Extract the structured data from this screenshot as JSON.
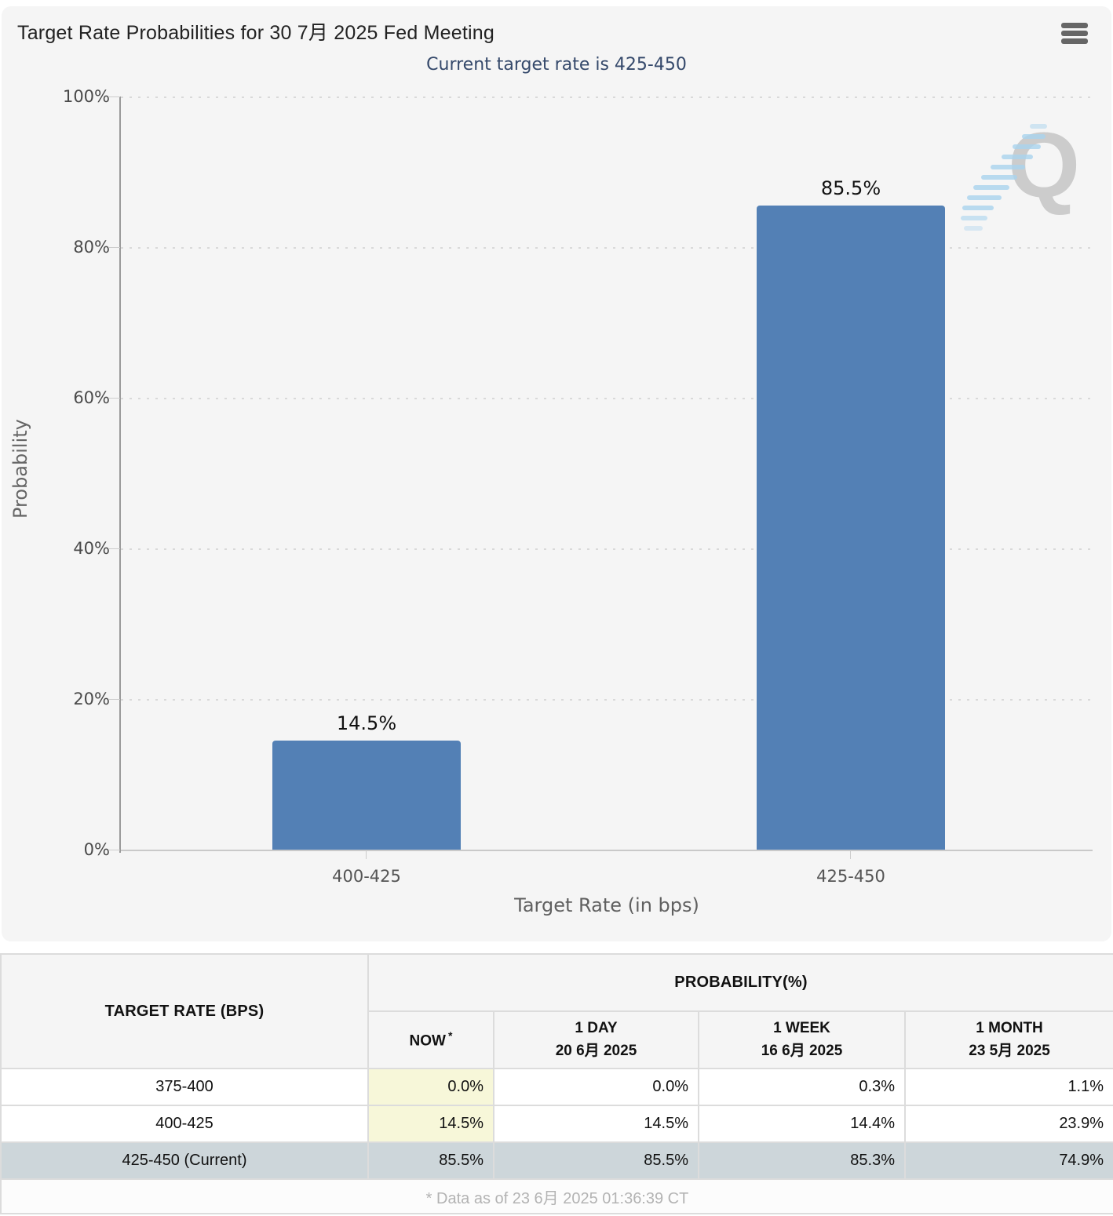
{
  "chart": {
    "title": "Target Rate Probabilities for 30 7月 2025 Fed Meeting",
    "subtitle": "Current target rate is 425-450",
    "watermark_letter": "Q",
    "colors": {
      "bar": "#5380b5",
      "subtitle_text": "#35496b",
      "now_column_highlight": "#f7f7d9",
      "current_row_highlight": "#cdd6da",
      "card_background": "#f5f5f5"
    }
  },
  "chart_data": {
    "type": "bar",
    "title": "Target Rate Probabilities for 30 7月 2025 Fed Meeting",
    "subtitle": "Current target rate is 425-450",
    "categories": [
      "400-425",
      "425-450"
    ],
    "values": [
      14.5,
      85.5
    ],
    "value_labels": [
      "14.5%",
      "85.5%"
    ],
    "xlabel": "Target Rate (in bps)",
    "ylabel": "Probability",
    "ylim": [
      0,
      100
    ],
    "ytick_labels": [
      "100%",
      "80%",
      "60%",
      "40%",
      "20%",
      "0%"
    ],
    "grid": "horizontal dotted",
    "legend": "none",
    "bar_color": "#5380b5"
  },
  "table": {
    "header": {
      "target_rate": "TARGET RATE (BPS)",
      "probability": "PROBABILITY(%)",
      "now": "NOW",
      "now_asterisk": "*",
      "day_label": "1 DAY",
      "day_date": "20 6月 2025",
      "week_label": "1 WEEK",
      "week_date": "16 6月 2025",
      "month_label": "1 MONTH",
      "month_date": "23 5月 2025"
    },
    "rows": [
      {
        "rate": "375-400",
        "now": "0.0%",
        "day": "0.0%",
        "week": "0.3%",
        "month": "1.1%"
      },
      {
        "rate": "400-425",
        "now": "14.5%",
        "day": "14.5%",
        "week": "14.4%",
        "month": "23.9%"
      },
      {
        "rate": "425-450 (Current)",
        "now": "85.5%",
        "day": "85.5%",
        "week": "85.3%",
        "month": "74.9%"
      }
    ],
    "footnote": "* Data as of 23 6月 2025 01:36:39 CT"
  }
}
